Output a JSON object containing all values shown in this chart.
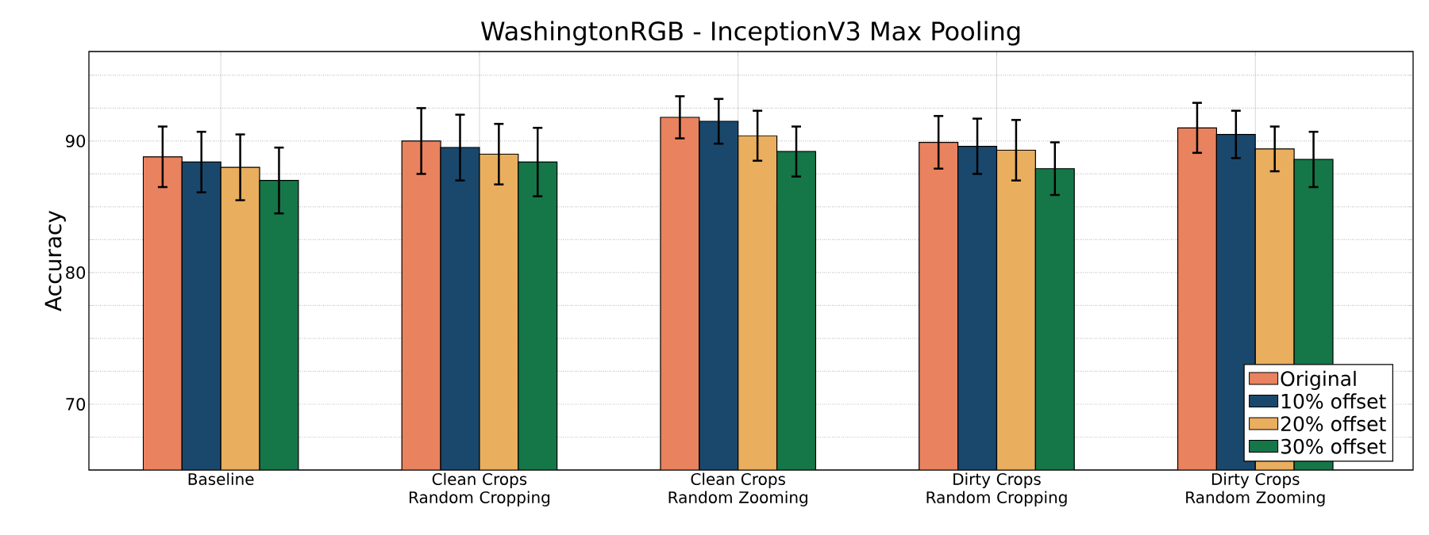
{
  "chart_data": {
    "type": "bar",
    "title": "WashingtonRGB - InceptionV3 Max Pooling",
    "ylabel": "Accuracy",
    "categories": [
      "Baseline",
      "Clean Crops Random Cropping",
      "Clean Crops Random Zooming",
      "Dirty Crops Random Cropping",
      "Dirty Crops Random Zooming"
    ],
    "series": [
      {
        "name": "Original",
        "color": "#e9825e",
        "values": [
          88.8,
          90.0,
          91.8,
          89.9,
          91.0
        ],
        "errors": [
          2.3,
          2.5,
          1.6,
          2.0,
          1.9
        ]
      },
      {
        "name": "10% offset",
        "color": "#1a486c",
        "values": [
          88.4,
          89.5,
          91.5,
          89.6,
          90.5
        ],
        "errors": [
          2.3,
          2.5,
          1.7,
          2.1,
          1.8
        ]
      },
      {
        "name": "20% offset",
        "color": "#e9ae5e",
        "values": [
          88.0,
          89.0,
          90.4,
          89.3,
          89.4
        ],
        "errors": [
          2.5,
          2.3,
          1.9,
          2.3,
          1.7
        ]
      },
      {
        "name": "30% offset",
        "color": "#157647",
        "values": [
          87.0,
          88.4,
          89.2,
          87.9,
          88.6
        ],
        "errors": [
          2.5,
          2.6,
          1.9,
          2.0,
          2.1
        ]
      }
    ],
    "ylim": [
      65,
      96.8
    ],
    "yticks": [
      {
        "value": 67.5,
        "label": null
      },
      70,
      {
        "value": 72.5,
        "label": null
      },
      {
        "value": 75,
        "label": null
      },
      {
        "value": 77.5,
        "label": null
      },
      80,
      {
        "value": 82.5,
        "label": null
      },
      {
        "value": 85,
        "label": null
      },
      {
        "value": 87.5,
        "label": null
      },
      90,
      {
        "value": 92.5,
        "label": null
      },
      {
        "value": 95,
        "label": null
      }
    ],
    "grid": true,
    "legend": "bottom right"
  }
}
